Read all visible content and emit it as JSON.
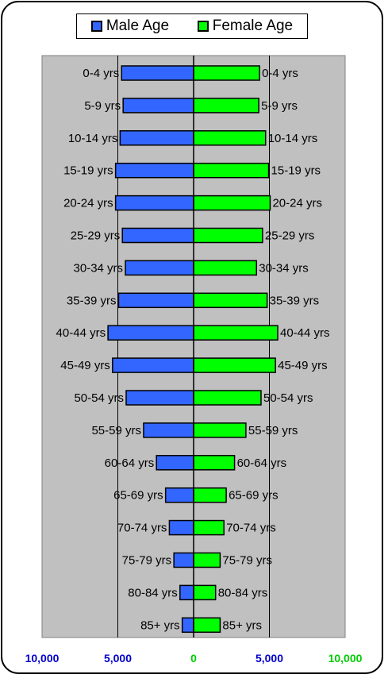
{
  "chart_data": {
    "type": "bar",
    "orientation": "horizontal-population-pyramid",
    "categories": [
      "0-4 yrs",
      "5-9 yrs",
      "10-14 yrs",
      "15-19 yrs",
      "20-24 yrs",
      "25-29 yrs",
      "30-34 yrs",
      "35-39 yrs",
      "40-44 yrs",
      "45-49 yrs",
      "50-54 yrs",
      "55-59 yrs",
      "60-64 yrs",
      "65-69 yrs",
      "70-74 yrs",
      "75-79 yrs",
      "80-84 yrs",
      "85+ yrs"
    ],
    "series": [
      {
        "name": "Male Age",
        "color": "#3366ff",
        "values": [
          4750,
          4650,
          4850,
          5150,
          5150,
          4700,
          4500,
          4950,
          5650,
          5350,
          4450,
          3300,
          2450,
          1850,
          1600,
          1300,
          900,
          750
        ]
      },
      {
        "name": "Female Age",
        "color": "#00ff00",
        "values": [
          4350,
          4300,
          4750,
          4950,
          5050,
          4550,
          4150,
          4850,
          5550,
          5400,
          4450,
          3450,
          2700,
          2150,
          2000,
          1750,
          1450,
          1750
        ]
      }
    ],
    "xlim": [
      -10000,
      10000
    ],
    "x_ticks": [
      {
        "value": -10000,
        "label": "10,000",
        "color": "#0000cc"
      },
      {
        "value": -5000,
        "label": "5,000",
        "color": "#0000cc"
      },
      {
        "value": 0,
        "label": "0",
        "color": "#00cc00"
      },
      {
        "value": 5000,
        "label": "5,000",
        "color": "#0000cc"
      },
      {
        "value": 10000,
        "label": "10,000",
        "color": "#00cc00"
      }
    ],
    "grid": "vertical",
    "legend": "top",
    "plot_background": "#c0c0c0"
  }
}
